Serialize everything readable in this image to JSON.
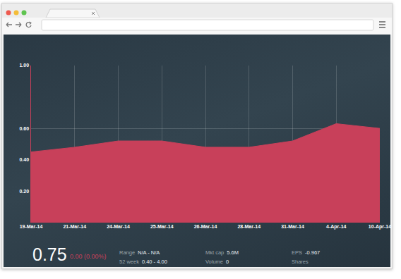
{
  "chart_data": {
    "type": "area",
    "categories": [
      "19-Mar-14",
      "21-Mar-14",
      "24-Mar-14",
      "25-Mar-14",
      "26-Mar-14",
      "28-Mar-14",
      "31-Mar-14",
      "4-Apr-14",
      "10-Apr-14"
    ],
    "values": [
      0.45,
      0.48,
      0.52,
      0.52,
      0.48,
      0.48,
      0.52,
      0.63,
      0.6
    ],
    "color": "#c8405a",
    "ylim": [
      0,
      1.0
    ],
    "yticks": [
      {
        "value": 0.2,
        "label": "0.20"
      },
      {
        "value": 0.4,
        "label": "0.40"
      },
      {
        "value": 0.6,
        "label": "0.60"
      },
      {
        "value": 1.0,
        "label": "1.00"
      }
    ],
    "grid": true
  },
  "quote": {
    "price": "0.75",
    "change": "0.00 (0.00%)",
    "stats": [
      {
        "label": "Range",
        "value": "N/A - N/A"
      },
      {
        "label": "52 week",
        "value": "0.40 - 4.00"
      },
      {
        "label": "Mkt cap",
        "value": "5.6M"
      },
      {
        "label": "Volume",
        "value": "0"
      },
      {
        "label": "EPS",
        "value": "-0.967"
      },
      {
        "label": "Shares"
      }
    ]
  }
}
